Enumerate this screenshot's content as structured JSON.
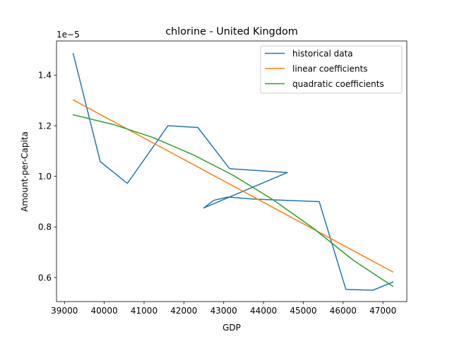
{
  "chart_data": {
    "type": "line",
    "title": "chlorine - United Kingdom",
    "xlabel": "GDP",
    "ylabel": "Amount-per-Capita",
    "y_offset_label": "1e−5",
    "xlim": [
      38800,
      47600
    ],
    "ylim": [
      0.505,
      1.535
    ],
    "x_ticks": [
      39000,
      40000,
      41000,
      42000,
      43000,
      44000,
      45000,
      46000,
      47000
    ],
    "x_tick_labels": [
      "39000",
      "40000",
      "41000",
      "42000",
      "43000",
      "44000",
      "45000",
      "46000",
      "47000"
    ],
    "y_ticks": [
      0.6,
      0.8,
      1.0,
      1.2,
      1.4
    ],
    "y_tick_labels": [
      "0.6",
      "0.8",
      "1.0",
      "1.2",
      "1.4"
    ],
    "legend_position": "top-right",
    "grid": false,
    "series": [
      {
        "name": "historical data",
        "color": "#1f77b4",
        "x": [
          39220,
          39900,
          40580,
          41600,
          42350,
          43150,
          44600,
          42500,
          42750,
          43100,
          43750,
          45400,
          46070,
          46750,
          47250
        ],
        "y": [
          1.485,
          1.058,
          0.972,
          1.2,
          1.193,
          1.03,
          1.015,
          0.875,
          0.905,
          0.918,
          0.91,
          0.9,
          0.553,
          0.55,
          0.582
        ]
      },
      {
        "name": "linear coefficients",
        "color": "#ff7f0e",
        "x": [
          39220,
          47250
        ],
        "y": [
          1.302,
          0.622
        ]
      },
      {
        "name": "quadratic coefficients",
        "color": "#2ca02c",
        "x": [
          39220,
          40225,
          41230,
          42235,
          43240,
          44245,
          45250,
          46250,
          47250
        ],
        "y": [
          1.243,
          1.205,
          1.153,
          1.085,
          1.004,
          0.907,
          0.795,
          0.669,
          0.565
        ]
      }
    ]
  }
}
